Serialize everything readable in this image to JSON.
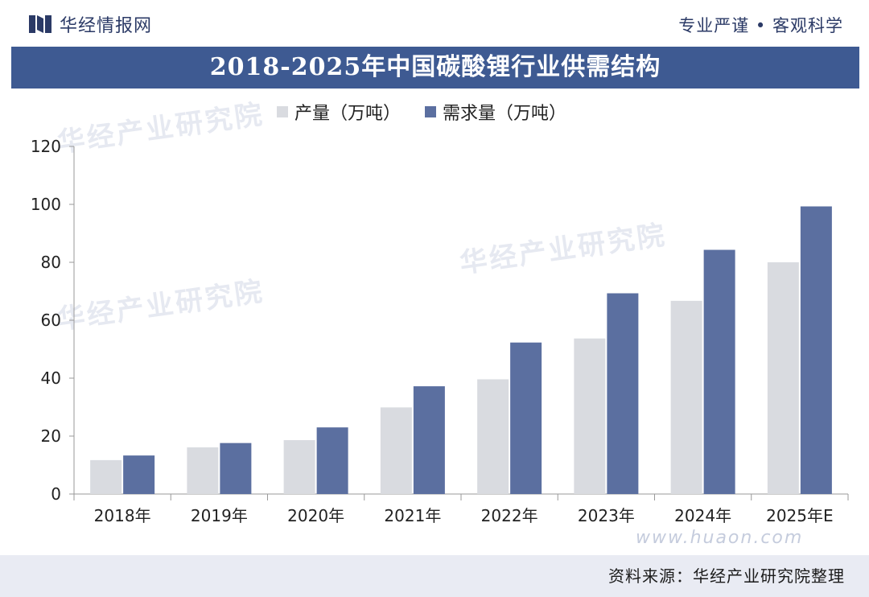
{
  "header": {
    "brand_name": "华经情报网",
    "slogan": "专业严谨 • 客观科学",
    "brand_color": "#2b3a66"
  },
  "title": "2018-2025年中国碳酸锂行业供需结构",
  "title_bar_color": "#3e5a92",
  "watermark": {
    "text": "华经产业研究院",
    "url": "www.huaon.com"
  },
  "source": "资料来源：华经产业研究院整理",
  "chart_data": {
    "type": "bar",
    "categories": [
      "2018年",
      "2019年",
      "2020年",
      "2021年",
      "2022年",
      "2023年",
      "2024年",
      "2025年E"
    ],
    "series": [
      {
        "name": "产量（万吨）",
        "color": "#d9dbe0",
        "values": [
          11.7,
          16.1,
          18.6,
          29.9,
          39.6,
          53.7,
          66.7,
          80.0
        ]
      },
      {
        "name": "需求量（万吨）",
        "color": "#5b6fa0",
        "values": [
          13.3,
          17.6,
          23.0,
          37.2,
          52.3,
          69.3,
          84.3,
          99.3
        ]
      }
    ],
    "yticks": [
      0,
      20,
      40,
      60,
      80,
      100,
      120
    ],
    "ylim": [
      0,
      120
    ],
    "grid": false,
    "legend_position": "top"
  }
}
